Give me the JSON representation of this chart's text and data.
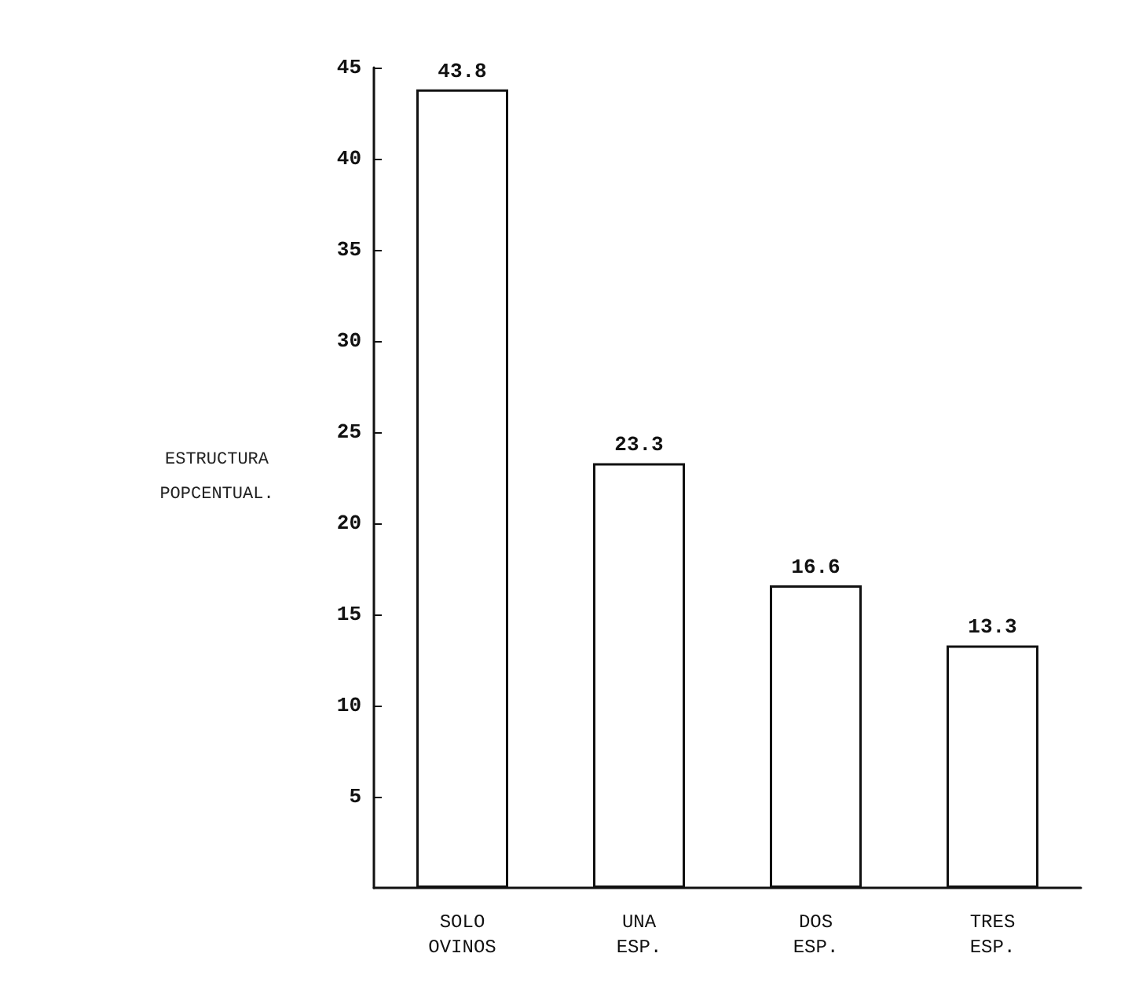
{
  "chart_data": {
    "type": "bar",
    "ylabel": "ESTRUCTURA POPCENTUAL.",
    "categories": [
      "SOLO OVINOS",
      "UNA ESP.",
      "DOS ESP.",
      "TRES ESP."
    ],
    "values": [
      43.8,
      23.3,
      16.6,
      13.3
    ],
    "color": "#ffffff",
    "data_labels": true,
    "ylim": [
      0,
      45
    ],
    "yticks": [
      5,
      10,
      15,
      20,
      25,
      30,
      35,
      40,
      45
    ],
    "grid": false
  }
}
